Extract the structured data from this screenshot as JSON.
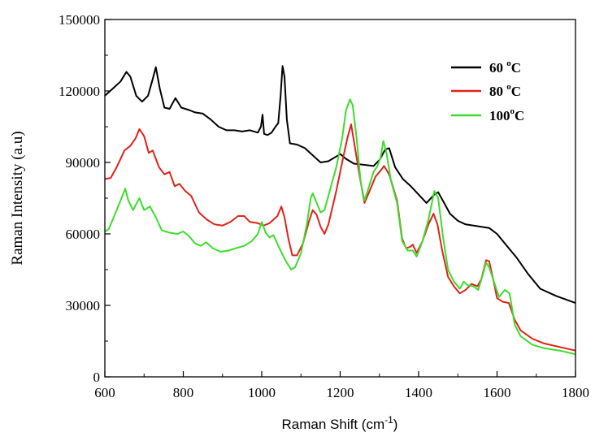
{
  "chart_data": {
    "type": "line",
    "xlabel": "Raman Shift (cm",
    "xlabel_sup": "-1",
    "xlabel_close": ")",
    "ylabel": "Raman Intensity (a.u)",
    "xlim": [
      600,
      1800
    ],
    "ylim": [
      0,
      150000
    ],
    "x_ticks": [
      "600",
      "800",
      "1000",
      "1200",
      "1400",
      "1600",
      "1800"
    ],
    "y_ticks": [
      "0",
      "30000",
      "60000",
      "90000",
      "120000",
      "150000"
    ],
    "legend_position": "top-right",
    "series": [
      {
        "label_main": "60 ",
        "label_sup": "o",
        "label_tail": "C",
        "color": "#000000",
        "points": [
          [
            600,
            118000
          ],
          [
            620,
            121000
          ],
          [
            640,
            124000
          ],
          [
            655,
            128000
          ],
          [
            665,
            126000
          ],
          [
            680,
            118000
          ],
          [
            695,
            115500
          ],
          [
            710,
            118000
          ],
          [
            722,
            125000
          ],
          [
            730,
            130000
          ],
          [
            740,
            121000
          ],
          [
            752,
            113000
          ],
          [
            765,
            112500
          ],
          [
            780,
            117000
          ],
          [
            795,
            113000
          ],
          [
            815,
            112000
          ],
          [
            830,
            111000
          ],
          [
            850,
            110500
          ],
          [
            870,
            108000
          ],
          [
            890,
            105000
          ],
          [
            910,
            103500
          ],
          [
            930,
            103500
          ],
          [
            950,
            103000
          ],
          [
            970,
            103500
          ],
          [
            990,
            102500
          ],
          [
            998,
            105000
          ],
          [
            1002,
            110000
          ],
          [
            1006,
            102000
          ],
          [
            1015,
            101500
          ],
          [
            1025,
            102500
          ],
          [
            1035,
            105000
          ],
          [
            1042,
            106500
          ],
          [
            1048,
            118000
          ],
          [
            1053,
            130500
          ],
          [
            1058,
            126000
          ],
          [
            1064,
            108000
          ],
          [
            1072,
            98000
          ],
          [
            1090,
            97500
          ],
          [
            1110,
            96000
          ],
          [
            1130,
            93000
          ],
          [
            1150,
            90000
          ],
          [
            1170,
            90500
          ],
          [
            1190,
            92500
          ],
          [
            1200,
            93500
          ],
          [
            1215,
            91500
          ],
          [
            1235,
            89500
          ],
          [
            1260,
            89000
          ],
          [
            1285,
            88500
          ],
          [
            1300,
            91000
          ],
          [
            1315,
            95500
          ],
          [
            1325,
            96000
          ],
          [
            1340,
            88000
          ],
          [
            1360,
            83000
          ],
          [
            1380,
            80000
          ],
          [
            1400,
            76500
          ],
          [
            1420,
            73000
          ],
          [
            1440,
            76500
          ],
          [
            1450,
            77500
          ],
          [
            1465,
            73000
          ],
          [
            1480,
            68500
          ],
          [
            1500,
            65500
          ],
          [
            1520,
            64000
          ],
          [
            1540,
            63500
          ],
          [
            1560,
            63000
          ],
          [
            1580,
            62500
          ],
          [
            1600,
            60000
          ],
          [
            1620,
            56000
          ],
          [
            1650,
            50000
          ],
          [
            1680,
            43000
          ],
          [
            1710,
            37000
          ],
          [
            1750,
            34000
          ],
          [
            1800,
            31000
          ]
        ]
      },
      {
        "label_main": "80 ",
        "label_sup": "o",
        "label_tail": "C",
        "color": "#e0221b",
        "points": [
          [
            600,
            83000
          ],
          [
            615,
            83500
          ],
          [
            630,
            88000
          ],
          [
            650,
            95000
          ],
          [
            665,
            97000
          ],
          [
            678,
            100000
          ],
          [
            688,
            104000
          ],
          [
            700,
            101000
          ],
          [
            712,
            94000
          ],
          [
            722,
            95000
          ],
          [
            738,
            88000
          ],
          [
            752,
            85000
          ],
          [
            765,
            86000
          ],
          [
            778,
            80000
          ],
          [
            790,
            81000
          ],
          [
            805,
            78000
          ],
          [
            820,
            76000
          ],
          [
            840,
            69000
          ],
          [
            860,
            66000
          ],
          [
            880,
            64000
          ],
          [
            900,
            63500
          ],
          [
            920,
            65000
          ],
          [
            940,
            67500
          ],
          [
            955,
            67500
          ],
          [
            970,
            65000
          ],
          [
            990,
            64500
          ],
          [
            1005,
            63500
          ],
          [
            1020,
            64500
          ],
          [
            1040,
            67500
          ],
          [
            1050,
            71500
          ],
          [
            1058,
            67000
          ],
          [
            1068,
            58000
          ],
          [
            1078,
            51000
          ],
          [
            1090,
            51000
          ],
          [
            1105,
            56000
          ],
          [
            1120,
            65000
          ],
          [
            1130,
            70000
          ],
          [
            1140,
            68000
          ],
          [
            1150,
            63000
          ],
          [
            1160,
            60000
          ],
          [
            1170,
            64000
          ],
          [
            1190,
            78000
          ],
          [
            1205,
            90000
          ],
          [
            1218,
            100000
          ],
          [
            1228,
            106000
          ],
          [
            1240,
            94000
          ],
          [
            1250,
            84000
          ],
          [
            1262,
            73000
          ],
          [
            1275,
            78000
          ],
          [
            1290,
            84000
          ],
          [
            1305,
            87000
          ],
          [
            1312,
            88500
          ],
          [
            1325,
            85000
          ],
          [
            1345,
            74000
          ],
          [
            1358,
            58000
          ],
          [
            1368,
            54000
          ],
          [
            1378,
            54500
          ],
          [
            1385,
            55500
          ],
          [
            1395,
            52000
          ],
          [
            1410,
            57000
          ],
          [
            1425,
            64000
          ],
          [
            1438,
            68500
          ],
          [
            1448,
            64000
          ],
          [
            1460,
            53000
          ],
          [
            1475,
            42000
          ],
          [
            1490,
            38000
          ],
          [
            1505,
            35000
          ],
          [
            1520,
            36500
          ],
          [
            1535,
            39000
          ],
          [
            1550,
            38000
          ],
          [
            1560,
            41000
          ],
          [
            1572,
            49000
          ],
          [
            1580,
            48500
          ],
          [
            1590,
            41000
          ],
          [
            1600,
            33000
          ],
          [
            1615,
            31500
          ],
          [
            1630,
            31000
          ],
          [
            1645,
            24000
          ],
          [
            1660,
            19500
          ],
          [
            1690,
            16000
          ],
          [
            1720,
            14000
          ],
          [
            1760,
            12500
          ],
          [
            1800,
            11000
          ]
        ]
      },
      {
        "label_main": "100",
        "label_sup": "o",
        "label_tail": "C",
        "color": "#3ddc2c",
        "points": [
          [
            600,
            61000
          ],
          [
            610,
            62000
          ],
          [
            625,
            68000
          ],
          [
            640,
            74000
          ],
          [
            652,
            79000
          ],
          [
            660,
            74000
          ],
          [
            672,
            70000
          ],
          [
            688,
            75000
          ],
          [
            700,
            70000
          ],
          [
            715,
            71500
          ],
          [
            730,
            67000
          ],
          [
            745,
            61500
          ],
          [
            765,
            60500
          ],
          [
            785,
            60000
          ],
          [
            800,
            61000
          ],
          [
            815,
            59000
          ],
          [
            830,
            56000
          ],
          [
            845,
            55000
          ],
          [
            858,
            56500
          ],
          [
            875,
            54000
          ],
          [
            895,
            52500
          ],
          [
            915,
            53000
          ],
          [
            935,
            54000
          ],
          [
            955,
            55000
          ],
          [
            975,
            57000
          ],
          [
            990,
            60000
          ],
          [
            1000,
            65000
          ],
          [
            1010,
            60500
          ],
          [
            1020,
            58500
          ],
          [
            1030,
            59500
          ],
          [
            1045,
            54000
          ],
          [
            1060,
            49000
          ],
          [
            1075,
            45000
          ],
          [
            1085,
            46000
          ],
          [
            1100,
            52000
          ],
          [
            1115,
            64000
          ],
          [
            1125,
            75000
          ],
          [
            1130,
            77000
          ],
          [
            1140,
            73000
          ],
          [
            1150,
            69000
          ],
          [
            1160,
            70000
          ],
          [
            1175,
            79000
          ],
          [
            1190,
            88000
          ],
          [
            1205,
            100000
          ],
          [
            1215,
            112000
          ],
          [
            1225,
            116500
          ],
          [
            1232,
            114000
          ],
          [
            1242,
            100000
          ],
          [
            1252,
            82000
          ],
          [
            1262,
            74000
          ],
          [
            1272,
            79000
          ],
          [
            1285,
            86000
          ],
          [
            1295,
            88500
          ],
          [
            1303,
            92000
          ],
          [
            1310,
            99000
          ],
          [
            1318,
            94000
          ],
          [
            1330,
            82000
          ],
          [
            1345,
            73000
          ],
          [
            1358,
            57000
          ],
          [
            1372,
            53000
          ],
          [
            1385,
            53000
          ],
          [
            1395,
            50500
          ],
          [
            1410,
            57000
          ],
          [
            1425,
            66000
          ],
          [
            1440,
            78000
          ],
          [
            1450,
            75000
          ],
          [
            1462,
            59000
          ],
          [
            1475,
            45000
          ],
          [
            1490,
            40000
          ],
          [
            1505,
            37000
          ],
          [
            1515,
            40000
          ],
          [
            1525,
            38500
          ],
          [
            1540,
            38000
          ],
          [
            1552,
            36500
          ],
          [
            1562,
            42000
          ],
          [
            1572,
            48000
          ],
          [
            1580,
            46000
          ],
          [
            1592,
            40000
          ],
          [
            1605,
            33500
          ],
          [
            1620,
            36500
          ],
          [
            1632,
            35000
          ],
          [
            1645,
            22000
          ],
          [
            1660,
            17000
          ],
          [
            1690,
            13500
          ],
          [
            1720,
            12000
          ],
          [
            1760,
            11000
          ],
          [
            1800,
            9500
          ]
        ]
      }
    ]
  }
}
